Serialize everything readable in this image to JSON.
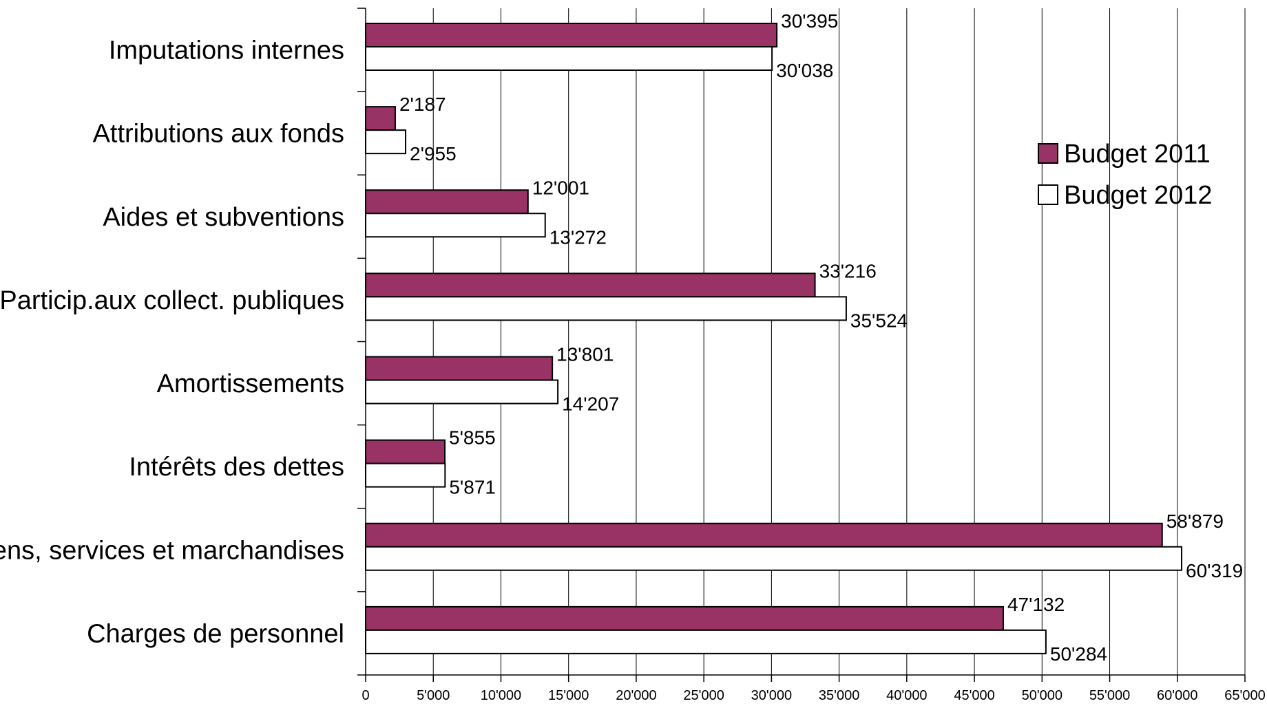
{
  "chart_data": {
    "type": "bar",
    "orientation": "horizontal",
    "categories": [
      "Charges de personnel",
      "Biens, services et marchandises",
      "Intérêts des dettes",
      "Amortissements",
      "Particip.aux collect. publiques",
      "Aides et subventions",
      "Attributions aux fonds",
      "Imputations internes"
    ],
    "series": [
      {
        "name": "Budget 2011",
        "color": "#993366",
        "values": [
          47132,
          58879,
          5855,
          13801,
          33216,
          12001,
          2187,
          30395
        ],
        "labels": [
          "47'132",
          "58'879",
          "5'855",
          "13'801",
          "33'216",
          "12'001",
          "2'187",
          "30'395"
        ]
      },
      {
        "name": "Budget 2012",
        "color": "#ffffff",
        "values": [
          50284,
          60319,
          5871,
          14207,
          35524,
          13272,
          2955,
          30038
        ],
        "labels": [
          "50'284",
          "60'319",
          "5'871",
          "14'207",
          "35'524",
          "13'272",
          "2'955",
          "30'038"
        ]
      }
    ],
    "xlim": [
      0,
      65000
    ],
    "xticks": [
      0,
      5000,
      10000,
      15000,
      20000,
      25000,
      30000,
      35000,
      40000,
      45000,
      50000,
      55000,
      60000,
      65000
    ],
    "xtick_labels": [
      "0",
      "5'000",
      "10'000",
      "15'000",
      "20'000",
      "25'000",
      "30'000",
      "35'000",
      "40'000",
      "45'000",
      "50'000",
      "55'000",
      "60'000",
      "65'000"
    ],
    "title": "",
    "xlabel": "",
    "ylabel": "",
    "grid": "vertical",
    "legend_position": "right"
  }
}
